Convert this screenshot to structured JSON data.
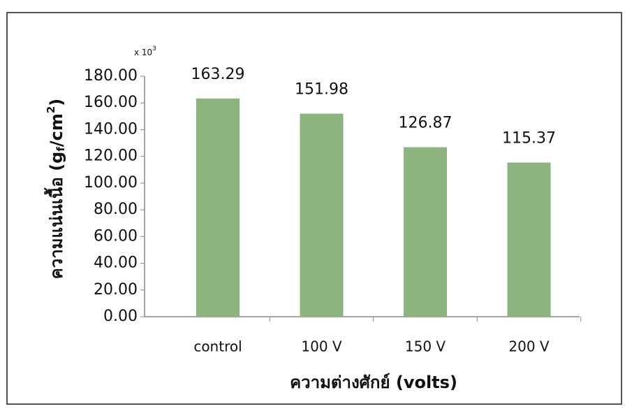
{
  "chart_data": {
    "type": "bar",
    "categories": [
      "control",
      "100 V",
      "150 V",
      "200 V"
    ],
    "values": [
      163.29,
      151.98,
      126.87,
      115.37
    ],
    "color": "#8db37e",
    "ylim": [
      0,
      180
    ],
    "yticks": [
      {
        "value": 0,
        "label": "0.00"
      },
      {
        "value": 20,
        "label": "20.00"
      },
      {
        "value": 40,
        "label": "40.00"
      },
      {
        "value": 60,
        "label": "60.00"
      },
      {
        "value": 80,
        "label": "80.00"
      },
      {
        "value": 100,
        "label": "100.00"
      },
      {
        "value": 120,
        "label": "120.00"
      },
      {
        "value": 140,
        "label": "140.00"
      },
      {
        "value": 160,
        "label": "160.00"
      },
      {
        "value": 180,
        "label": "180.00"
      }
    ],
    "y_multiplier": [
      "x 10",
      "3"
    ],
    "ylabel": [
      "ความแน่นเนื้อ (g",
      "f",
      "/cm",
      "2",
      ")"
    ],
    "xlabel": "ความต่างศักย์ (volts)"
  }
}
